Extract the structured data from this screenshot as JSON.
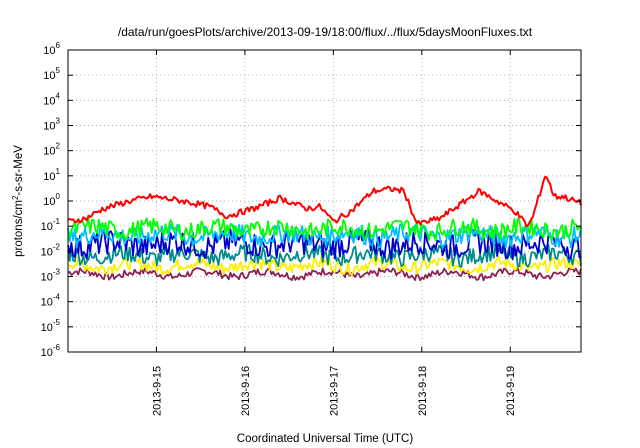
{
  "chart_data": {
    "type": "line",
    "title": "/data/run/goesPlots/archive/2013-09-19/18:00/flux/../flux/5daysMoonFluxes.txt",
    "xlabel": "Coordinated Universal Time (UTC)",
    "ylabel": "protons/cm2-s-sr-MeV",
    "ylabel_parts": {
      "pre": "protons/cm",
      "sup": "2",
      "post": "-s-sr-MeV"
    },
    "yscale": "log",
    "ylim": [
      1e-06,
      1000000.0
    ],
    "y_tick_labels": [
      {
        "base": "10",
        "exp": "-6"
      },
      {
        "base": "10",
        "exp": "-5"
      },
      {
        "base": "10",
        "exp": "-4"
      },
      {
        "base": "10",
        "exp": "-3"
      },
      {
        "base": "10",
        "exp": "-2"
      },
      {
        "base": "10",
        "exp": "-1"
      },
      {
        "base": "10",
        "exp": "0"
      },
      {
        "base": "10",
        "exp": "1"
      },
      {
        "base": "10",
        "exp": "2"
      },
      {
        "base": "10",
        "exp": "3"
      },
      {
        "base": "10",
        "exp": "4"
      },
      {
        "base": "10",
        "exp": "5"
      },
      {
        "base": "10",
        "exp": "6"
      }
    ],
    "xlim_days": [
      14.0,
      19.8
    ],
    "x_tick_labels": [
      "2013-9-15",
      "2013-9-16",
      "2013-9-17",
      "2013-9-18",
      "2013-9-19"
    ],
    "grid": true,
    "legend": "none",
    "series": [
      {
        "color": "#ff0000",
        "level": 0.55,
        "noise": 0.12,
        "control": [
          [
            14.0,
            0.15
          ],
          [
            14.2,
            0.2
          ],
          [
            14.4,
            0.5
          ],
          [
            14.7,
            1.0
          ],
          [
            14.95,
            1.5
          ],
          [
            15.3,
            1.0
          ],
          [
            15.6,
            0.6
          ],
          [
            15.8,
            0.25
          ],
          [
            16.1,
            0.5
          ],
          [
            16.4,
            1.3
          ],
          [
            16.7,
            0.5
          ],
          [
            16.85,
            0.6
          ],
          [
            17.0,
            0.15
          ],
          [
            17.2,
            0.4
          ],
          [
            17.45,
            2.5
          ],
          [
            17.65,
            3.0
          ],
          [
            17.8,
            2.5
          ],
          [
            17.9,
            0.3
          ],
          [
            17.95,
            0.12
          ],
          [
            18.2,
            0.2
          ],
          [
            18.45,
            0.8
          ],
          [
            18.65,
            2.5
          ],
          [
            18.85,
            1.0
          ],
          [
            19.05,
            0.4
          ],
          [
            19.2,
            0.1
          ],
          [
            19.25,
            0.2
          ],
          [
            19.4,
            12.0
          ],
          [
            19.5,
            1.5
          ],
          [
            19.6,
            1.5
          ],
          [
            19.8,
            0.8
          ]
        ]
      },
      {
        "color": "#00ff00",
        "level": 0.08,
        "noise": 0.35,
        "control": []
      },
      {
        "color": "#00bfff",
        "level": 0.045,
        "noise": 0.4,
        "control": []
      },
      {
        "color": "#0000cd",
        "level": 0.02,
        "noise": 0.5,
        "control": []
      },
      {
        "color": "#008b8b",
        "level": 0.007,
        "noise": 0.35,
        "control": []
      },
      {
        "color": "#ffee00",
        "level": 0.0028,
        "noise": 0.25,
        "control": []
      },
      {
        "color": "#8b2252",
        "level": 0.0013,
        "noise": 0.15,
        "control": []
      }
    ]
  }
}
